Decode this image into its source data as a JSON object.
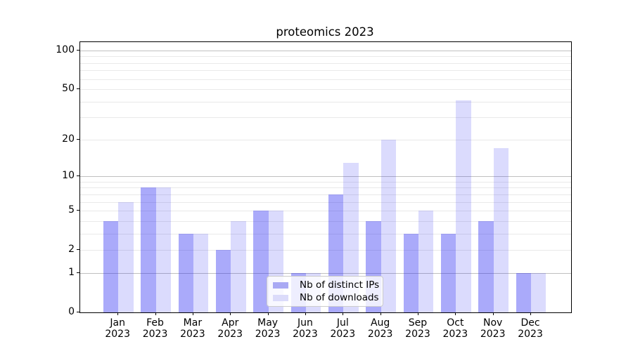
{
  "chart_data": {
    "type": "bar",
    "title": "proteomics 2023",
    "categories": [
      "Jan 2023",
      "Feb 2023",
      "Mar 2023",
      "Apr 2023",
      "May 2023",
      "Jun 2023",
      "Jul 2023",
      "Aug 2023",
      "Sep 2023",
      "Oct 2023",
      "Nov 2023",
      "Dec 2023"
    ],
    "series": [
      {
        "name": "Nb of distinct IPs",
        "color": "#2020f261",
        "legend_color": "#a9a9f4",
        "values": [
          4,
          8,
          3,
          2,
          5,
          1,
          7,
          4,
          3,
          3,
          4,
          1
        ]
      },
      {
        "name": "Nb of downloads",
        "color": "#2020f229",
        "legend_color": "#dbdbfa",
        "values": [
          6,
          8,
          3,
          4,
          5,
          1,
          13,
          20,
          5,
          41,
          17,
          1
        ]
      }
    ],
    "xlabel": "",
    "ylabel": "",
    "yscale": "log1p",
    "ylim": [
      0,
      116
    ],
    "yticks": [
      0,
      1,
      2,
      5,
      10,
      20,
      50,
      100
    ],
    "grid": {
      "major_values": [
        1,
        10,
        100
      ],
      "minor_values": [
        2,
        3,
        4,
        5,
        6,
        7,
        8,
        9,
        20,
        30,
        40,
        50,
        60,
        70,
        80,
        90
      ],
      "major_color": "#c0c0c0",
      "minor_color": "#e9e9e9"
    },
    "legend_position": "lower center"
  }
}
